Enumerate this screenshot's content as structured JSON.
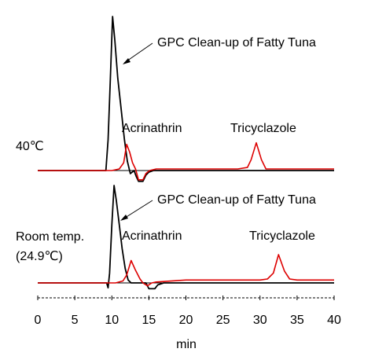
{
  "chart_data": [
    {
      "type": "line",
      "panel": "top",
      "condition_label": "40℃",
      "annotations": {
        "gpc": "GPC Clean-up of Fatty Tuna",
        "peak1": "Acrinathrin",
        "peak2": "Tricyclazole"
      },
      "xlim": [
        0,
        40
      ],
      "series": [
        {
          "color": "#000000",
          "points": [
            [
              0,
              0
            ],
            [
              9.2,
              0
            ],
            [
              9.5,
              0.2
            ],
            [
              9.8,
              0.6
            ],
            [
              10.1,
              1.0
            ],
            [
              10.4,
              0.85
            ],
            [
              10.8,
              0.6
            ],
            [
              11.3,
              0.38
            ],
            [
              11.7,
              0.2
            ],
            [
              12.1,
              0.06
            ],
            [
              12.5,
              -0.02
            ],
            [
              13.0,
              0.0
            ],
            [
              13.3,
              -0.04
            ],
            [
              13.6,
              -0.07
            ],
            [
              14.2,
              -0.07
            ],
            [
              14.6,
              -0.03
            ],
            [
              15.0,
              -0.01
            ],
            [
              15.6,
              0.0
            ],
            [
              17,
              0.0
            ],
            [
              20,
              0.0
            ],
            [
              40,
              0.0
            ]
          ]
        },
        {
          "color": "#dd0000",
          "points": [
            [
              0,
              0.0
            ],
            [
              10.0,
              0.0
            ],
            [
              11.0,
              0.01
            ],
            [
              11.6,
              0.05
            ],
            [
              12.0,
              0.17
            ],
            [
              12.4,
              0.12
            ],
            [
              12.8,
              0.05
            ],
            [
              13.2,
              0.01
            ],
            [
              13.6,
              -0.06
            ],
            [
              14.2,
              -0.06
            ],
            [
              14.6,
              -0.02
            ],
            [
              15.1,
              0.0
            ],
            [
              16,
              0.01
            ],
            [
              20,
              0.01
            ],
            [
              27,
              0.01
            ],
            [
              28.3,
              0.02
            ],
            [
              28.8,
              0.07
            ],
            [
              29.5,
              0.18
            ],
            [
              30.2,
              0.07
            ],
            [
              30.8,
              0.01
            ],
            [
              32,
              0.01
            ],
            [
              40,
              0.01
            ]
          ]
        }
      ]
    },
    {
      "type": "line",
      "panel": "bottom",
      "condition_label_lines": [
        "Room temp.",
        "(24.9℃)"
      ],
      "annotations": {
        "gpc": "GPC Clean-up of Fatty Tuna",
        "peak1": "Acrinathrin",
        "peak2": "Tricyclazole"
      },
      "xlim": [
        0,
        40
      ],
      "series": [
        {
          "color": "#000000",
          "points": [
            [
              0,
              0
            ],
            [
              9.3,
              0.0
            ],
            [
              9.5,
              -0.05
            ],
            [
              9.7,
              0.1
            ],
            [
              10.0,
              0.6
            ],
            [
              10.3,
              1.0
            ],
            [
              10.6,
              0.85
            ],
            [
              11.0,
              0.6
            ],
            [
              11.4,
              0.35
            ],
            [
              11.8,
              0.15
            ],
            [
              12.2,
              0.03
            ],
            [
              12.6,
              0.0
            ],
            [
              13.0,
              0.0
            ],
            [
              14.0,
              0.0
            ],
            [
              14.6,
              0.0
            ],
            [
              15.0,
              -0.06
            ],
            [
              15.8,
              -0.06
            ],
            [
              16.2,
              -0.02
            ],
            [
              17,
              0.0
            ],
            [
              20,
              0.0
            ],
            [
              30,
              0.0
            ],
            [
              40,
              0.0
            ]
          ]
        },
        {
          "color": "#dd0000",
          "points": [
            [
              0,
              0.0
            ],
            [
              10.5,
              0.0
            ],
            [
              11.5,
              0.02
            ],
            [
              12.0,
              0.08
            ],
            [
              12.6,
              0.23
            ],
            [
              13.2,
              0.13
            ],
            [
              13.8,
              0.04
            ],
            [
              14.2,
              0.0
            ],
            [
              14.8,
              -0.03
            ],
            [
              15.4,
              0.0
            ],
            [
              16,
              0.01
            ],
            [
              20,
              0.03
            ],
            [
              25,
              0.03
            ],
            [
              30,
              0.03
            ],
            [
              31.0,
              0.04
            ],
            [
              31.8,
              0.1
            ],
            [
              32.5,
              0.29
            ],
            [
              33.3,
              0.12
            ],
            [
              34.0,
              0.04
            ],
            [
              35,
              0.03
            ],
            [
              40,
              0.03
            ]
          ]
        }
      ]
    }
  ],
  "axis": {
    "ticks": [
      0,
      5,
      10,
      15,
      20,
      25,
      30,
      35,
      40
    ],
    "xlabel": "min"
  }
}
